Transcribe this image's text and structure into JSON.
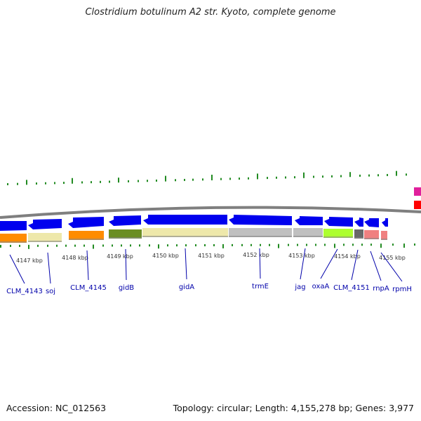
{
  "title": "Clostridium botulinum A2 str. Kyoto, complete genome",
  "accession_label": "Accession: NC_012563",
  "topology_label": "Topology: circular; Length: 4,155,278 bp; Genes: 3,977",
  "colors": {
    "cds_arrow": "#0000ee",
    "backbone": "#7f7f7f",
    "gc_tick": "#228b22",
    "label": "#0000aa",
    "kbp_text": "#333333"
  },
  "kbp_labels": [
    "4147 kbp",
    "4148 kbp",
    "4149 kbp",
    "4150 kbp",
    "4151 kbp",
    "4152 kbp",
    "4153 kbp",
    "4154 kbp",
    "4155 kbp"
  ],
  "genes": [
    {
      "name": "CLM_4143",
      "color": "#ff8c00"
    },
    {
      "name": "soj",
      "color": "#eee8aa"
    },
    {
      "name": "CLM_4145",
      "color": "#ff8c00"
    },
    {
      "name": "gidB",
      "color": "#6b8e23"
    },
    {
      "name": "gidA",
      "color": "#eee8aa"
    },
    {
      "name": "trmE",
      "color": "#c0c0c0"
    },
    {
      "name": "jag",
      "color": "#c0c0c0"
    },
    {
      "name": "oxaA",
      "color": "#adff2f"
    },
    {
      "name": "CLM_4151",
      "color": "#696969"
    },
    {
      "name": "rnpA",
      "color": "#f08080"
    },
    {
      "name": "rpmH",
      "color": "#f08080"
    }
  ]
}
